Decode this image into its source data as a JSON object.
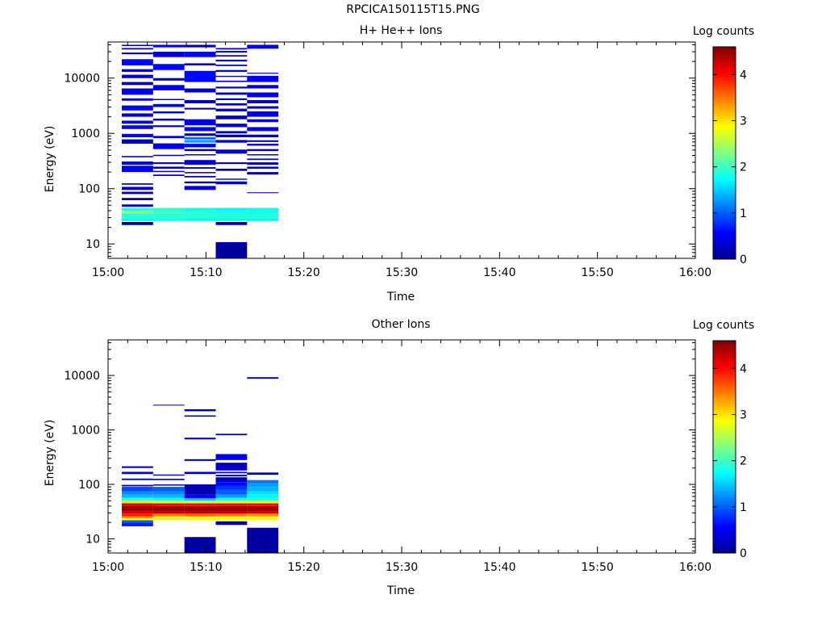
{
  "figure": {
    "title": "RPCICA150115T15.PNG"
  },
  "chart_data": [
    {
      "type": "heatmap",
      "title": "H+ He++ Ions",
      "xlabel": "Time",
      "ylabel": "Energy (eV)",
      "x_ticks": [
        "15:00",
        "15:10",
        "15:20",
        "15:30",
        "15:40",
        "15:50",
        "16:00"
      ],
      "xlim_minutes": [
        0,
        60
      ],
      "y_scale": "log",
      "ylim": [
        5.5,
        45000
      ],
      "y_ticks": [
        10,
        100,
        1000,
        10000
      ],
      "y_tick_labels": [
        "10",
        "100",
        "1000",
        "10000"
      ],
      "colorbar": {
        "label": "Log counts",
        "range": [
          0,
          4.6
        ],
        "ticks": [
          "0",
          "1",
          "2",
          "3",
          "4"
        ]
      },
      "time_bins_minutes": [
        [
          1.4,
          4.6
        ],
        [
          4.6,
          7.8
        ],
        [
          7.8,
          11.0
        ],
        [
          11.0,
          14.2
        ],
        [
          14.2,
          17.4
        ]
      ],
      "cells": [
        [
          0,
          22,
          25,
          0.1
        ],
        [
          0,
          26,
          29,
          1.7
        ],
        [
          0,
          29,
          36,
          1.9
        ],
        [
          0,
          36,
          40,
          2.5
        ],
        [
          0,
          40,
          45,
          1.9
        ],
        [
          0,
          47,
          52,
          0.6
        ],
        [
          0,
          62,
          68,
          0.1
        ],
        [
          0,
          80,
          88,
          0.2
        ],
        [
          0,
          95,
          108,
          0.2
        ],
        [
          0,
          118,
          125,
          0.3
        ],
        [
          0,
          200,
          260,
          0.5
        ],
        [
          0,
          270,
          310,
          0.4
        ],
        [
          0,
          370,
          390,
          0.2
        ],
        [
          0,
          650,
          780,
          0.3
        ],
        [
          0,
          850,
          980,
          0.5
        ],
        [
          0,
          1200,
          1400,
          0.6
        ],
        [
          0,
          1500,
          1700,
          0.5
        ],
        [
          0,
          2000,
          2300,
          0.4
        ],
        [
          0,
          2600,
          3200,
          0.6
        ],
        [
          0,
          3900,
          4300,
          0.3
        ],
        [
          0,
          5000,
          6500,
          0.5
        ],
        [
          0,
          7500,
          8500,
          0.2
        ],
        [
          0,
          10000,
          11500,
          0.4
        ],
        [
          0,
          13000,
          14500,
          0.3
        ],
        [
          0,
          17000,
          22000,
          0.6
        ],
        [
          0,
          27000,
          29000,
          0.2
        ],
        [
          0,
          33000,
          35000,
          0.3
        ],
        [
          0,
          38000,
          40000,
          0.1
        ],
        [
          1,
          26,
          29,
          1.8
        ],
        [
          1,
          29,
          35,
          1.9
        ],
        [
          1,
          35,
          40,
          2.0
        ],
        [
          1,
          40,
          45,
          1.9
        ],
        [
          1,
          170,
          180,
          0.2
        ],
        [
          1,
          200,
          210,
          0.2
        ],
        [
          1,
          230,
          250,
          0.2
        ],
        [
          1,
          280,
          300,
          0.4
        ],
        [
          1,
          390,
          410,
          0.2
        ],
        [
          1,
          520,
          660,
          0.5
        ],
        [
          1,
          820,
          900,
          0.4
        ],
        [
          1,
          1300,
          1400,
          0.3
        ],
        [
          1,
          1700,
          1850,
          0.4
        ],
        [
          1,
          2300,
          2500,
          0.3
        ],
        [
          1,
          3000,
          3400,
          0.5
        ],
        [
          1,
          4000,
          4200,
          0.2
        ],
        [
          1,
          6000,
          7500,
          0.5
        ],
        [
          1,
          9000,
          10000,
          0.3
        ],
        [
          1,
          14000,
          18000,
          0.6
        ],
        [
          1,
          24000,
          30000,
          0.4
        ],
        [
          1,
          36000,
          40000,
          0.5
        ],
        [
          2,
          26,
          29,
          1.7
        ],
        [
          2,
          29,
          35,
          1.9
        ],
        [
          2,
          35,
          40,
          1.9
        ],
        [
          2,
          40,
          45,
          1.8
        ],
        [
          2,
          95,
          112,
          0.4
        ],
        [
          2,
          125,
          135,
          0.2
        ],
        [
          2,
          160,
          170,
          0.2
        ],
        [
          2,
          190,
          200,
          0.2
        ],
        [
          2,
          230,
          245,
          0.2
        ],
        [
          2,
          270,
          330,
          0.4
        ],
        [
          2,
          400,
          420,
          0.2
        ],
        [
          2,
          480,
          520,
          0.2
        ],
        [
          2,
          560,
          650,
          0.4
        ],
        [
          2,
          680,
          760,
          1.3
        ],
        [
          2,
          780,
          850,
          1.0
        ],
        [
          2,
          900,
          1000,
          0.3
        ],
        [
          2,
          1100,
          1300,
          0.6
        ],
        [
          2,
          1400,
          1800,
          0.5
        ],
        [
          2,
          2700,
          2900,
          0.2
        ],
        [
          2,
          3500,
          4000,
          0.3
        ],
        [
          2,
          5500,
          6500,
          0.3
        ],
        [
          2,
          8500,
          13500,
          0.6
        ],
        [
          2,
          17000,
          18500,
          0.2
        ],
        [
          2,
          24000,
          30000,
          0.6
        ],
        [
          2,
          36000,
          40000,
          0.2
        ],
        [
          3,
          5.5,
          10.8,
          0.1
        ],
        [
          3,
          22,
          25,
          0.2
        ],
        [
          3,
          26,
          29,
          1.7
        ],
        [
          3,
          29,
          35,
          1.9
        ],
        [
          3,
          35,
          40,
          1.8
        ],
        [
          3,
          40,
          45,
          1.7
        ],
        [
          3,
          120,
          135,
          0.4
        ],
        [
          3,
          145,
          152,
          0.2
        ],
        [
          3,
          210,
          230,
          0.2
        ],
        [
          3,
          280,
          300,
          0.3
        ],
        [
          3,
          430,
          510,
          0.4
        ],
        [
          3,
          680,
          760,
          0.3
        ],
        [
          3,
          850,
          950,
          0.2
        ],
        [
          3,
          1000,
          1100,
          0.3
        ],
        [
          3,
          1300,
          1500,
          0.4
        ],
        [
          3,
          1800,
          2100,
          0.3
        ],
        [
          3,
          2500,
          2800,
          0.4
        ],
        [
          3,
          3200,
          3500,
          0.3
        ],
        [
          3,
          4000,
          4300,
          0.2
        ],
        [
          3,
          5000,
          5500,
          0.3
        ],
        [
          3,
          6500,
          7000,
          0.2
        ],
        [
          3,
          8500,
          9000,
          0.3
        ],
        [
          3,
          10500,
          11000,
          0.2
        ],
        [
          3,
          13000,
          14000,
          0.3
        ],
        [
          3,
          16500,
          17500,
          0.2
        ],
        [
          3,
          20000,
          21500,
          0.3
        ],
        [
          3,
          24500,
          26000,
          0.2
        ],
        [
          3,
          29000,
          31000,
          0.3
        ],
        [
          3,
          33000,
          35000,
          0.5
        ],
        [
          4,
          26,
          29,
          1.7
        ],
        [
          4,
          29,
          35,
          1.9
        ],
        [
          4,
          35,
          40,
          1.8
        ],
        [
          4,
          40,
          45,
          1.8
        ],
        [
          4,
          83,
          86,
          0.3
        ],
        [
          4,
          180,
          200,
          0.3
        ],
        [
          4,
          230,
          250,
          0.2
        ],
        [
          4,
          270,
          300,
          0.4
        ],
        [
          4,
          330,
          350,
          0.2
        ],
        [
          4,
          400,
          420,
          0.2
        ],
        [
          4,
          480,
          520,
          0.3
        ],
        [
          4,
          600,
          650,
          0.3
        ],
        [
          4,
          700,
          750,
          0.3
        ],
        [
          4,
          850,
          950,
          0.4
        ],
        [
          4,
          1100,
          1300,
          0.5
        ],
        [
          4,
          1600,
          1800,
          0.3
        ],
        [
          4,
          2000,
          2500,
          0.4
        ],
        [
          4,
          2800,
          3100,
          0.3
        ],
        [
          4,
          3500,
          4000,
          0.3
        ],
        [
          4,
          4500,
          5500,
          0.5
        ],
        [
          4,
          6500,
          7500,
          0.3
        ],
        [
          4,
          8500,
          11000,
          0.5
        ],
        [
          4,
          12000,
          12500,
          0.2
        ],
        [
          4,
          34000,
          40000,
          0.5
        ]
      ]
    },
    {
      "type": "heatmap",
      "title": "Other Ions",
      "xlabel": "Time",
      "ylabel": "Energy (eV)",
      "x_ticks": [
        "15:00",
        "15:10",
        "15:20",
        "15:30",
        "15:40",
        "15:50",
        "16:00"
      ],
      "xlim_minutes": [
        0,
        60
      ],
      "y_scale": "log",
      "ylim": [
        5.5,
        45000
      ],
      "y_ticks": [
        10,
        100,
        1000,
        10000
      ],
      "y_tick_labels": [
        "10",
        "100",
        "1000",
        "10000"
      ],
      "colorbar": {
        "label": "Log counts",
        "range": [
          0,
          4.6
        ],
        "ticks": [
          "0",
          "1",
          "2",
          "3",
          "4"
        ]
      },
      "time_bins_minutes": [
        [
          1.4,
          4.6
        ],
        [
          4.6,
          7.8
        ],
        [
          7.8,
          11.0
        ],
        [
          11.0,
          14.2
        ],
        [
          14.2,
          17.4
        ]
      ],
      "cells": [
        [
          0,
          17,
          20,
          0.7
        ],
        [
          0,
          20,
          22,
          1.0
        ],
        [
          0,
          22,
          24,
          2.9
        ],
        [
          0,
          24,
          26,
          3.4
        ],
        [
          0,
          26,
          29,
          3.9
        ],
        [
          0,
          29,
          33,
          4.2
        ],
        [
          0,
          33,
          40,
          4.5
        ],
        [
          0,
          40,
          45,
          4.2
        ],
        [
          0,
          45,
          50,
          3.0
        ],
        [
          0,
          50,
          57,
          1.9
        ],
        [
          0,
          57,
          65,
          1.4
        ],
        [
          0,
          65,
          75,
          1.2
        ],
        [
          0,
          75,
          90,
          0.9
        ],
        [
          0,
          92,
          98,
          0.4
        ],
        [
          0,
          120,
          128,
          0.3
        ],
        [
          0,
          155,
          170,
          0.4
        ],
        [
          0,
          200,
          215,
          0.3
        ],
        [
          1,
          22,
          26,
          2.7
        ],
        [
          1,
          26,
          29,
          3.5
        ],
        [
          1,
          29,
          33,
          4.3
        ],
        [
          1,
          33,
          40,
          4.5
        ],
        [
          1,
          40,
          45,
          4.1
        ],
        [
          1,
          45,
          50,
          2.8
        ],
        [
          1,
          50,
          57,
          1.8
        ],
        [
          1,
          57,
          65,
          1.4
        ],
        [
          1,
          65,
          75,
          1.2
        ],
        [
          1,
          75,
          90,
          1.0
        ],
        [
          1,
          95,
          100,
          0.3
        ],
        [
          1,
          120,
          127,
          0.4
        ],
        [
          1,
          145,
          152,
          0.3
        ],
        [
          1,
          2800,
          2900,
          0.3
        ],
        [
          2,
          5.5,
          10.8,
          0.1
        ],
        [
          2,
          22,
          26,
          2.8
        ],
        [
          2,
          26,
          29,
          3.6
        ],
        [
          2,
          29,
          33,
          4.3
        ],
        [
          2,
          33,
          40,
          4.5
        ],
        [
          2,
          40,
          45,
          4.0
        ],
        [
          2,
          45,
          50,
          2.7
        ],
        [
          2,
          50,
          56,
          1.5
        ],
        [
          2,
          56,
          65,
          0.6
        ],
        [
          2,
          65,
          100,
          0.2
        ],
        [
          2,
          155,
          170,
          0.3
        ],
        [
          2,
          270,
          290,
          0.3
        ],
        [
          2,
          670,
          720,
          0.3
        ],
        [
          2,
          1750,
          1850,
          0.3
        ],
        [
          2,
          2200,
          2400,
          0.2
        ],
        [
          3,
          18,
          21,
          0.2
        ],
        [
          3,
          22,
          26,
          2.8
        ],
        [
          3,
          26,
          29,
          3.5
        ],
        [
          3,
          29,
          33,
          4.3
        ],
        [
          3,
          33,
          40,
          4.5
        ],
        [
          3,
          40,
          45,
          4.1
        ],
        [
          3,
          45,
          50,
          2.9
        ],
        [
          3,
          50,
          57,
          1.8
        ],
        [
          3,
          57,
          65,
          1.3
        ],
        [
          3,
          65,
          80,
          1.0
        ],
        [
          3,
          80,
          95,
          0.8
        ],
        [
          3,
          95,
          110,
          0.6
        ],
        [
          3,
          110,
          135,
          0.3
        ],
        [
          3,
          140,
          150,
          0.3
        ],
        [
          3,
          160,
          170,
          0.4
        ],
        [
          3,
          180,
          250,
          0.3
        ],
        [
          3,
          280,
          360,
          0.5
        ],
        [
          3,
          800,
          850,
          0.3
        ],
        [
          4,
          5.5,
          16,
          0.1
        ],
        [
          4,
          22,
          26,
          2.8
        ],
        [
          4,
          26,
          29,
          3.4
        ],
        [
          4,
          29,
          33,
          4.2
        ],
        [
          4,
          33,
          40,
          4.5
        ],
        [
          4,
          40,
          45,
          4.0
        ],
        [
          4,
          45,
          50,
          2.8
        ],
        [
          4,
          50,
          57,
          1.9
        ],
        [
          4,
          57,
          65,
          1.7
        ],
        [
          4,
          65,
          75,
          1.6
        ],
        [
          4,
          75,
          90,
          1.4
        ],
        [
          4,
          90,
          105,
          1.3
        ],
        [
          4,
          105,
          120,
          1.1
        ],
        [
          4,
          150,
          165,
          0.3
        ],
        [
          4,
          8700,
          9300,
          0.3
        ]
      ]
    }
  ]
}
